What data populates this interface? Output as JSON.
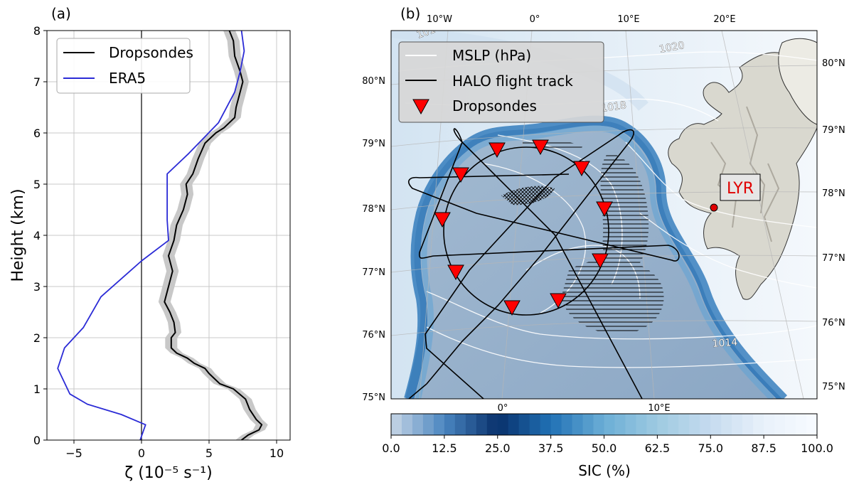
{
  "figure": {
    "panel_a_label": "(a)",
    "panel_b_label": "(b)"
  },
  "chart_data": [
    {
      "type": "line",
      "panel": "(a)",
      "xlabel": "ζ (10⁻⁵ s⁻¹)",
      "ylabel": "Height (km)",
      "xlim": [
        -7,
        11
      ],
      "ylim": [
        0,
        8
      ],
      "xticks": [
        -5,
        0,
        5,
        10
      ],
      "yticks": [
        0,
        1,
        2,
        3,
        4,
        5,
        6,
        7,
        8
      ],
      "xtick_labels": [
        "−5",
        "0",
        "5",
        "10"
      ],
      "ytick_labels": [
        "0",
        "1",
        "2",
        "3",
        "4",
        "5",
        "6",
        "7",
        "8"
      ],
      "grid": true,
      "legend_position": "top-left",
      "vertical_reference_line": 0,
      "series": [
        {
          "name": "Dropsondes",
          "color": "#000000",
          "shading_color": "#c8c8c8",
          "points": [
            [
              7.4,
              0.0
            ],
            [
              7.9,
              0.1
            ],
            [
              8.7,
              0.2
            ],
            [
              8.9,
              0.3
            ],
            [
              8.5,
              0.4
            ],
            [
              8.0,
              0.6
            ],
            [
              7.7,
              0.8
            ],
            [
              6.8,
              1.0
            ],
            [
              5.8,
              1.1
            ],
            [
              5.4,
              1.2
            ],
            [
              5.0,
              1.3
            ],
            [
              4.7,
              1.4
            ],
            [
              3.9,
              1.5
            ],
            [
              3.4,
              1.6
            ],
            [
              2.6,
              1.7
            ],
            [
              2.2,
              1.8
            ],
            [
              2.2,
              2.0
            ],
            [
              2.5,
              2.1
            ],
            [
              2.4,
              2.3
            ],
            [
              2.1,
              2.5
            ],
            [
              1.7,
              2.7
            ],
            [
              1.9,
              2.9
            ],
            [
              2.1,
              3.1
            ],
            [
              2.3,
              3.3
            ],
            [
              2.0,
              3.6
            ],
            [
              2.4,
              3.9
            ],
            [
              2.6,
              4.2
            ],
            [
              3.1,
              4.5
            ],
            [
              3.4,
              4.8
            ],
            [
              3.3,
              5.0
            ],
            [
              3.8,
              5.2
            ],
            [
              4.2,
              5.5
            ],
            [
              4.7,
              5.8
            ],
            [
              5.5,
              6.0
            ],
            [
              6.1,
              6.1
            ],
            [
              6.9,
              6.3
            ],
            [
              7.0,
              6.5
            ],
            [
              7.2,
              6.7
            ],
            [
              7.5,
              7.0
            ],
            [
              7.3,
              7.2
            ],
            [
              6.9,
              7.5
            ],
            [
              6.8,
              7.8
            ],
            [
              6.5,
              8.0
            ]
          ]
        },
        {
          "name": "ERA5",
          "color": "#2b2bd6",
          "points": [
            [
              -0.1,
              0.0
            ],
            [
              0.3,
              0.3
            ],
            [
              -1.5,
              0.5
            ],
            [
              -4.0,
              0.7
            ],
            [
              -5.3,
              0.9
            ],
            [
              -6.2,
              1.4
            ],
            [
              -5.7,
              1.8
            ],
            [
              -4.3,
              2.2
            ],
            [
              -3.0,
              2.8
            ],
            [
              0.0,
              3.5
            ],
            [
              2.0,
              3.9
            ],
            [
              1.9,
              4.3
            ],
            [
              1.9,
              5.2
            ],
            [
              3.5,
              5.6
            ],
            [
              5.7,
              6.2
            ],
            [
              6.9,
              6.8
            ],
            [
              7.3,
              7.2
            ],
            [
              7.6,
              7.6
            ],
            [
              7.4,
              8.0
            ]
          ]
        }
      ]
    },
    {
      "type": "heatmap",
      "panel": "(b)",
      "colorbar_label": "SIC (%)",
      "colorbar_ticks": [
        0.0,
        12.5,
        25.0,
        37.5,
        50.0,
        62.5,
        75.0,
        87.5,
        100.0
      ],
      "colorbar_tick_labels": [
        "0.0",
        "12.5",
        "25.0",
        "37.5",
        "50.0",
        "62.5",
        "75.0",
        "87.5",
        "100.0"
      ],
      "colorbar_stops": [
        "#c8d6e6",
        "#4a86c0",
        "#08306b",
        "#2171b5",
        "#6baed6",
        "#9ecae1",
        "#c6dbef",
        "#e8f1fa",
        "#f7fbff"
      ],
      "top_lon_labels": [
        "10°W",
        "0°",
        "10°E",
        "20°E"
      ],
      "bottom_lon_labels": [
        "0°",
        "10°E"
      ],
      "left_lat_labels": [
        "80°N",
        "79°N",
        "78°N",
        "77°N",
        "76°N",
        "75°N"
      ],
      "right_lat_labels": [
        "80°N",
        "79°N",
        "78°N",
        "77°N",
        "76°N",
        "75°N"
      ],
      "isobar_labels": [
        "1020",
        "1018",
        "1014",
        "101"
      ],
      "station_label": "LYR",
      "legend_position": "top-left",
      "legend": [
        "MSLP (hPa)",
        "HALO flight track",
        "Dropsondes"
      ],
      "colors": {
        "open_water": "#95aec8",
        "ice_edge": "#1f6fb5",
        "pack_ice": "#e3eef8",
        "land": "#d8d6cc",
        "dropsonde_marker": "#ff0000",
        "station": "#e00000"
      }
    }
  ]
}
